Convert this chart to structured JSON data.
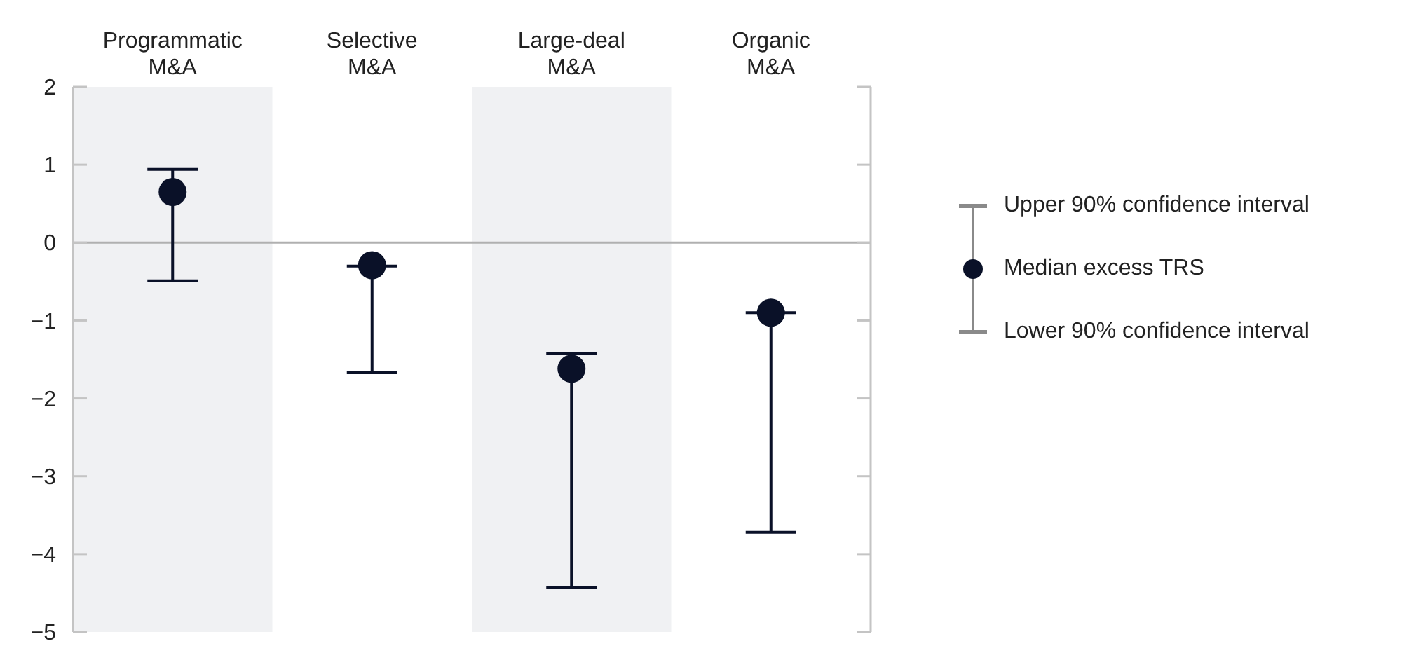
{
  "chart_data": {
    "type": "scatter",
    "categories": [
      "Programmatic M&A",
      "Selective M&A",
      "Large-deal M&A",
      "Organic M&A"
    ],
    "series": [
      {
        "name": "Median excess TRS",
        "color": "#0a1128",
        "values": [
          0.65,
          -0.29,
          -1.62,
          -0.9
        ],
        "errors": [
          [
            -0.49,
            0.94
          ],
          [
            -1.67,
            -0.3
          ],
          [
            -4.43,
            -1.42
          ],
          [
            -3.72,
            -0.9
          ]
        ]
      }
    ],
    "ylim": [
      -5,
      2
    ],
    "yticks": [
      2,
      1,
      0,
      {
        "value": -1,
        "label": "−1"
      },
      {
        "value": -2,
        "label": "−2"
      },
      {
        "value": -3,
        "label": "−3"
      },
      {
        "value": -4,
        "label": "−4"
      },
      {
        "value": -5,
        "label": "−5"
      }
    ],
    "ref_lines": [
      {
        "axis": "y",
        "value": 0,
        "color": "#b0b0b0"
      }
    ],
    "bands": [
      {
        "axis": "x",
        "from": "Programmatic M&A",
        "to": "Programmatic M&A",
        "color": "#f0f1f3"
      },
      {
        "axis": "x",
        "from": "Large-deal M&A",
        "to": "Large-deal M&A",
        "color": "#f0f1f3"
      }
    ],
    "annotations": [
      "Upper 90% confidence interval",
      "Lower 90% confidence interval"
    ],
    "marker": "circle",
    "legend": "right",
    "grid": false
  }
}
